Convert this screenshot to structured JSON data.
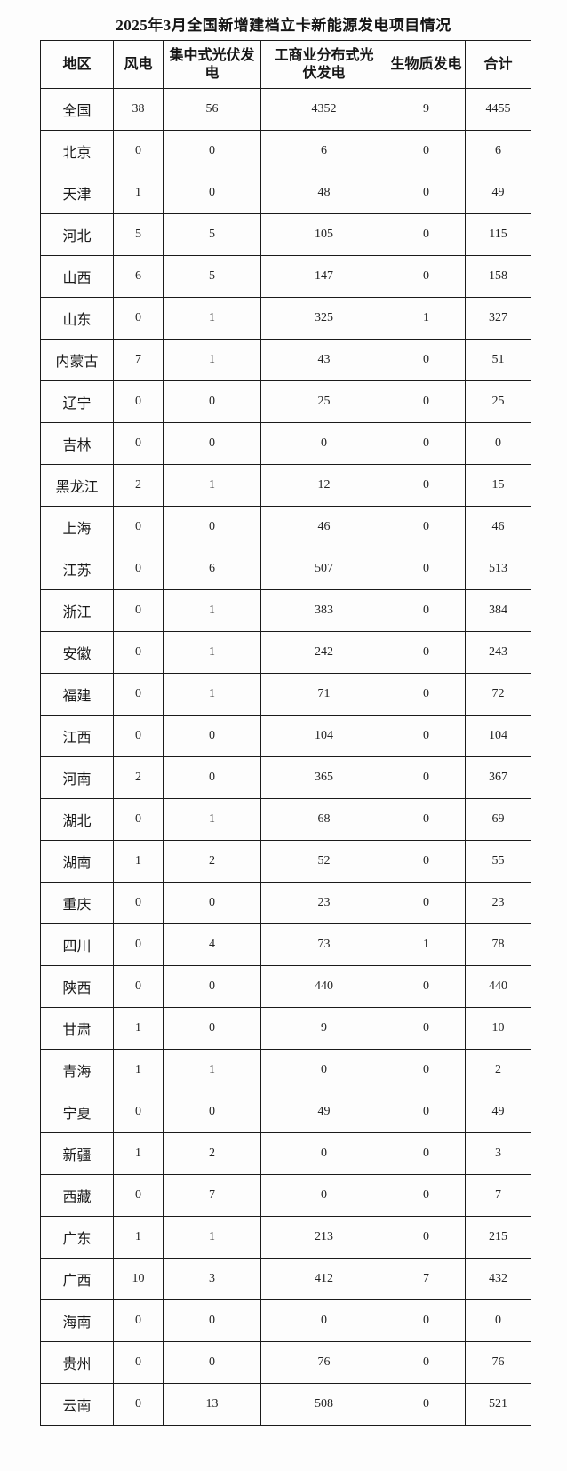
{
  "chart_data": {
    "type": "table",
    "title": "2025年3月全国新增建档立卡新能源发电项目情况",
    "columns": [
      "地区",
      "风电",
      "集中式光伏发\n电",
      "工商业分布式光\n伏发电",
      "生物质发电",
      "合计"
    ],
    "column_names_plain": [
      "地区",
      "风电",
      "集中式光伏发电",
      "工商业分布式光伏发电",
      "生物质发电",
      "合计"
    ],
    "rows": [
      [
        "全国",
        38,
        56,
        4352,
        9,
        4455
      ],
      [
        "北京",
        0,
        0,
        6,
        0,
        6
      ],
      [
        "天津",
        1,
        0,
        48,
        0,
        49
      ],
      [
        "河北",
        5,
        5,
        105,
        0,
        115
      ],
      [
        "山西",
        6,
        5,
        147,
        0,
        158
      ],
      [
        "山东",
        0,
        1,
        325,
        1,
        327
      ],
      [
        "内蒙古",
        7,
        1,
        43,
        0,
        51
      ],
      [
        "辽宁",
        0,
        0,
        25,
        0,
        25
      ],
      [
        "吉林",
        0,
        0,
        0,
        0,
        0
      ],
      [
        "黑龙江",
        2,
        1,
        12,
        0,
        15
      ],
      [
        "上海",
        0,
        0,
        46,
        0,
        46
      ],
      [
        "江苏",
        0,
        6,
        507,
        0,
        513
      ],
      [
        "浙江",
        0,
        1,
        383,
        0,
        384
      ],
      [
        "安徽",
        0,
        1,
        242,
        0,
        243
      ],
      [
        "福建",
        0,
        1,
        71,
        0,
        72
      ],
      [
        "江西",
        0,
        0,
        104,
        0,
        104
      ],
      [
        "河南",
        2,
        0,
        365,
        0,
        367
      ],
      [
        "湖北",
        0,
        1,
        68,
        0,
        69
      ],
      [
        "湖南",
        1,
        2,
        52,
        0,
        55
      ],
      [
        "重庆",
        0,
        0,
        23,
        0,
        23
      ],
      [
        "四川",
        0,
        4,
        73,
        1,
        78
      ],
      [
        "陕西",
        0,
        0,
        440,
        0,
        440
      ],
      [
        "甘肃",
        1,
        0,
        9,
        0,
        10
      ],
      [
        "青海",
        1,
        1,
        0,
        0,
        2
      ],
      [
        "宁夏",
        0,
        0,
        49,
        0,
        49
      ],
      [
        "新疆",
        1,
        2,
        0,
        0,
        3
      ],
      [
        "西藏",
        0,
        7,
        0,
        0,
        7
      ],
      [
        "广东",
        1,
        1,
        213,
        0,
        215
      ],
      [
        "广西",
        10,
        3,
        412,
        7,
        432
      ],
      [
        "海南",
        0,
        0,
        0,
        0,
        0
      ],
      [
        "贵州",
        0,
        0,
        76,
        0,
        76
      ],
      [
        "云南",
        0,
        13,
        508,
        0,
        521
      ]
    ],
    "layout": {
      "grid": true,
      "border_color": "#1b1b1b",
      "background_color": "#fdfdfd",
      "text_color": "#1c1c1c"
    }
  }
}
